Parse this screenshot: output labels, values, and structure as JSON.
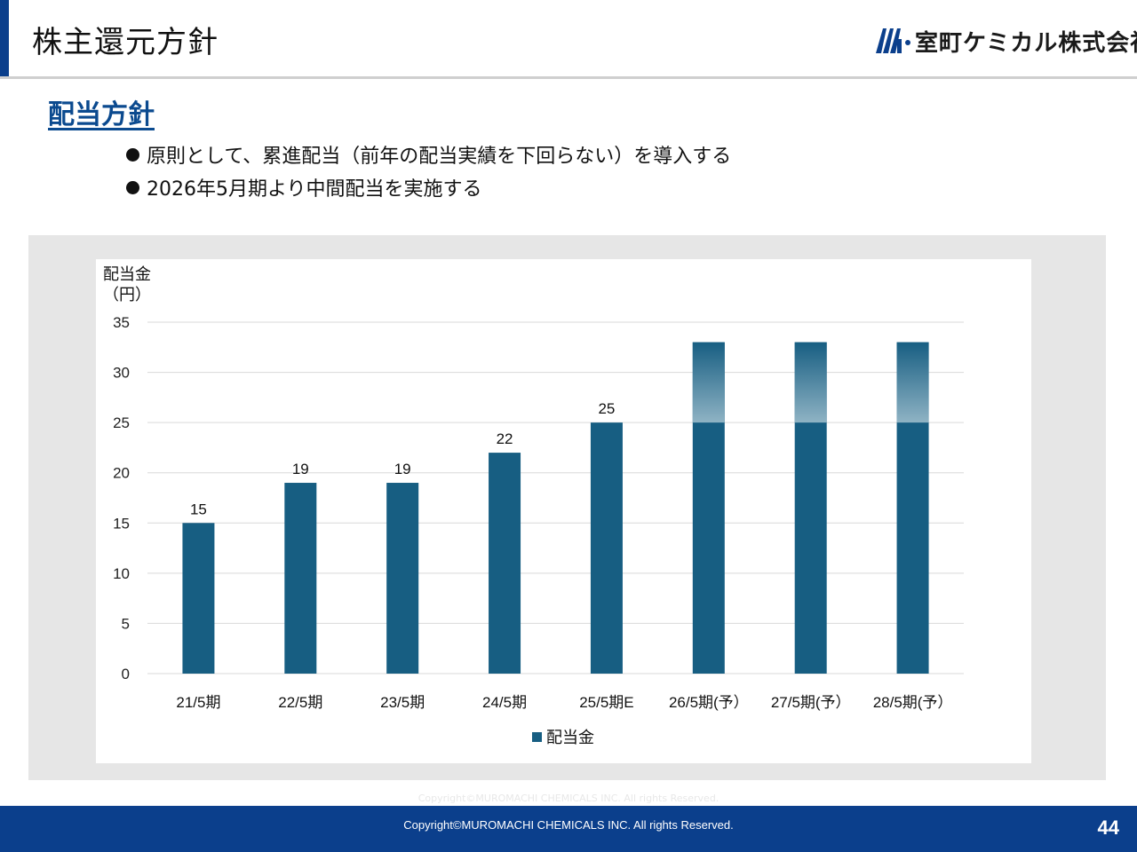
{
  "header": {
    "title": "株主還元方針",
    "company": "室町ケミカル株式会社"
  },
  "section": {
    "heading": "配当方針",
    "bullets": [
      "原則として、累進配当（前年の配当実績を下回らない）を導入する",
      "2026年5月期より中間配当を実施する"
    ]
  },
  "chart_data": {
    "type": "bar",
    "ylabel": "配当金\n（円）",
    "ylim": [
      0,
      35
    ],
    "yticks": [
      0,
      5,
      10,
      15,
      20,
      25,
      30,
      35
    ],
    "grid": true,
    "legend_position": "bottom",
    "categories": [
      "21/5期",
      "22/5期",
      "23/5期",
      "24/5期",
      "25/5期E",
      "26/5期(予）",
      "27/5期(予）",
      "28/5期(予）"
    ],
    "series": [
      {
        "name": "配当金",
        "values": [
          15,
          19,
          19,
          22,
          25,
          33,
          33,
          33
        ],
        "data_labels": [
          "15",
          "19",
          "19",
          "22",
          "25",
          "",
          "",
          ""
        ]
      }
    ],
    "colors": {
      "bar": "#175e82",
      "bar_highlight": "#8fb3c4"
    }
  },
  "footer": {
    "copyright": "Copyright©MUROMACHI CHEMICALS INC. All rights Reserved.",
    "page_number": "44"
  }
}
